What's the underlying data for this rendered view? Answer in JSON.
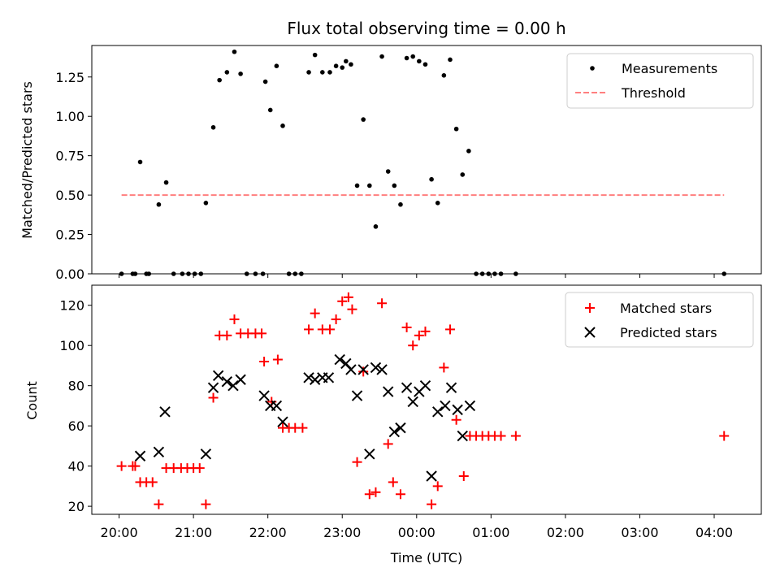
{
  "chart_data": [
    {
      "type": "scatter",
      "title": "Flux total observing time = 0.00 h",
      "xlabel": "",
      "ylabel": "Matched/Predicted stars",
      "xlim": [
        "19:38",
        "04:38"
      ],
      "ylim": [
        0,
        1.45
      ],
      "yticks": [
        "0.00",
        "0.25",
        "0.50",
        "0.75",
        "1.00",
        "1.25"
      ],
      "grid": false,
      "legend_position": "top-right",
      "series": [
        {
          "name": "Measurements",
          "marker": "dot",
          "color": "#000000",
          "points": [
            [
              "20:02",
              0
            ],
            [
              "20:11",
              0
            ],
            [
              "20:13",
              0
            ],
            [
              "20:22",
              0
            ],
            [
              "20:24",
              0
            ],
            [
              "20:17",
              0.71
            ],
            [
              "20:32",
              0.44
            ],
            [
              "20:38",
              0.58
            ],
            [
              "20:44",
              0
            ],
            [
              "20:51",
              0
            ],
            [
              "20:56",
              0
            ],
            [
              "21:01",
              0
            ],
            [
              "21:06",
              0
            ],
            [
              "21:10",
              0.45
            ],
            [
              "21:16",
              0.93
            ],
            [
              "21:21",
              1.23
            ],
            [
              "21:27",
              1.28
            ],
            [
              "21:33",
              1.41
            ],
            [
              "21:38",
              1.27
            ],
            [
              "21:43",
              0
            ],
            [
              "21:50",
              0
            ],
            [
              "21:56",
              0
            ],
            [
              "21:58",
              1.22
            ],
            [
              "22:02",
              1.04
            ],
            [
              "22:07",
              1.32
            ],
            [
              "22:12",
              0.94
            ],
            [
              "22:17",
              0
            ],
            [
              "22:22",
              0
            ],
            [
              "22:27",
              0
            ],
            [
              "22:33",
              1.28
            ],
            [
              "22:38",
              1.39
            ],
            [
              "22:44",
              1.28
            ],
            [
              "22:50",
              1.28
            ],
            [
              "22:55",
              1.32
            ],
            [
              "23:00",
              1.31
            ],
            [
              "23:03",
              1.35
            ],
            [
              "23:07",
              1.33
            ],
            [
              "23:12",
              0.56
            ],
            [
              "23:17",
              0.98
            ],
            [
              "23:22",
              0.56
            ],
            [
              "23:27",
              0.3
            ],
            [
              "23:32",
              1.38
            ],
            [
              "23:37",
              0.65
            ],
            [
              "23:42",
              0.56
            ],
            [
              "23:47",
              0.44
            ],
            [
              "23:52",
              1.37
            ],
            [
              "23:57",
              1.38
            ],
            [
              "00:02",
              1.35
            ],
            [
              "00:07",
              1.33
            ],
            [
              "00:12",
              0.6
            ],
            [
              "00:17",
              0.45
            ],
            [
              "00:22",
              1.26
            ],
            [
              "00:27",
              1.36
            ],
            [
              "00:32",
              0.92
            ],
            [
              "00:37",
              0.63
            ],
            [
              "00:42",
              0.78
            ],
            [
              "00:48",
              0
            ],
            [
              "00:53",
              0
            ],
            [
              "00:58",
              0
            ],
            [
              "01:03",
              0
            ],
            [
              "01:08",
              0
            ],
            [
              "01:20",
              0
            ],
            [
              "04:08",
              0
            ]
          ]
        },
        {
          "name": "Threshold",
          "marker": "dashed-line",
          "color": "#ff7f7f",
          "points": [
            [
              "20:02",
              0.5
            ],
            [
              "04:08",
              0.5
            ]
          ]
        }
      ]
    },
    {
      "type": "scatter",
      "title": "",
      "xlabel": "Time (UTC)",
      "ylabel": "Count",
      "xlim": [
        "19:38",
        "04:38"
      ],
      "ylim": [
        16,
        130
      ],
      "yticks": [
        "20",
        "40",
        "60",
        "80",
        "100",
        "120"
      ],
      "xticks": [
        "20:00",
        "21:00",
        "22:00",
        "23:00",
        "00:00",
        "01:00",
        "02:00",
        "03:00",
        "04:00"
      ],
      "grid": false,
      "legend_position": "top-right",
      "series": [
        {
          "name": "Matched stars",
          "marker": "plus",
          "color": "#ff0000",
          "points": [
            [
              "20:02",
              40
            ],
            [
              "20:11",
              40
            ],
            [
              "20:13",
              40
            ],
            [
              "20:17",
              32
            ],
            [
              "20:22",
              32
            ],
            [
              "20:27",
              32
            ],
            [
              "20:32",
              21
            ],
            [
              "20:38",
              39
            ],
            [
              "20:44",
              39
            ],
            [
              "20:50",
              39
            ],
            [
              "20:55",
              39
            ],
            [
              "21:00",
              39
            ],
            [
              "21:05",
              39
            ],
            [
              "21:10",
              21
            ],
            [
              "21:16",
              74
            ],
            [
              "21:21",
              105
            ],
            [
              "21:27",
              105
            ],
            [
              "21:33",
              113
            ],
            [
              "21:38",
              106
            ],
            [
              "21:44",
              106
            ],
            [
              "21:50",
              106
            ],
            [
              "21:55",
              106
            ],
            [
              "21:57",
              92
            ],
            [
              "22:03",
              72
            ],
            [
              "22:08",
              93
            ],
            [
              "22:12",
              59
            ],
            [
              "22:17",
              59
            ],
            [
              "22:22",
              59
            ],
            [
              "22:28",
              59
            ],
            [
              "22:33",
              108
            ],
            [
              "22:38",
              116
            ],
            [
              "22:44",
              108
            ],
            [
              "22:50",
              108
            ],
            [
              "22:55",
              113
            ],
            [
              "23:00",
              122
            ],
            [
              "23:05",
              124
            ],
            [
              "23:08",
              118
            ],
            [
              "23:12",
              42
            ],
            [
              "23:17",
              87
            ],
            [
              "23:22",
              26
            ],
            [
              "23:27",
              27
            ],
            [
              "23:32",
              121
            ],
            [
              "23:37",
              51
            ],
            [
              "23:41",
              32
            ],
            [
              "23:47",
              26
            ],
            [
              "23:52",
              109
            ],
            [
              "23:57",
              100
            ],
            [
              "00:02",
              105
            ],
            [
              "00:07",
              107
            ],
            [
              "00:12",
              21
            ],
            [
              "00:17",
              30
            ],
            [
              "00:22",
              89
            ],
            [
              "00:27",
              108
            ],
            [
              "00:32",
              63
            ],
            [
              "00:38",
              35
            ],
            [
              "00:43",
              55
            ],
            [
              "00:48",
              55
            ],
            [
              "00:53",
              55
            ],
            [
              "00:58",
              55
            ],
            [
              "01:03",
              55
            ],
            [
              "01:08",
              55
            ],
            [
              "01:20",
              55
            ],
            [
              "04:08",
              55
            ]
          ]
        },
        {
          "name": "Predicted stars",
          "marker": "x",
          "color": "#000000",
          "points": [
            [
              "20:17",
              45
            ],
            [
              "20:32",
              47
            ],
            [
              "20:37",
              67
            ],
            [
              "21:10",
              46
            ],
            [
              "21:16",
              79
            ],
            [
              "21:20",
              85
            ],
            [
              "21:27",
              82
            ],
            [
              "21:32",
              80
            ],
            [
              "21:38",
              83
            ],
            [
              "21:57",
              75
            ],
            [
              "22:02",
              70
            ],
            [
              "22:07",
              70
            ],
            [
              "22:12",
              62
            ],
            [
              "22:33",
              84
            ],
            [
              "22:38",
              83
            ],
            [
              "22:44",
              84
            ],
            [
              "22:49",
              84
            ],
            [
              "22:58",
              93
            ],
            [
              "23:03",
              91
            ],
            [
              "23:07",
              88
            ],
            [
              "23:12",
              75
            ],
            [
              "23:17",
              88
            ],
            [
              "23:22",
              46
            ],
            [
              "23:27",
              89
            ],
            [
              "23:32",
              88
            ],
            [
              "23:37",
              77
            ],
            [
              "23:42",
              57
            ],
            [
              "23:47",
              59
            ],
            [
              "23:52",
              79
            ],
            [
              "23:57",
              72
            ],
            [
              "00:02",
              77
            ],
            [
              "00:07",
              80
            ],
            [
              "00:12",
              35
            ],
            [
              "00:17",
              67
            ],
            [
              "00:23",
              70
            ],
            [
              "00:28",
              79
            ],
            [
              "00:33",
              68
            ],
            [
              "00:37",
              55
            ],
            [
              "00:43",
              70
            ]
          ]
        }
      ]
    }
  ]
}
